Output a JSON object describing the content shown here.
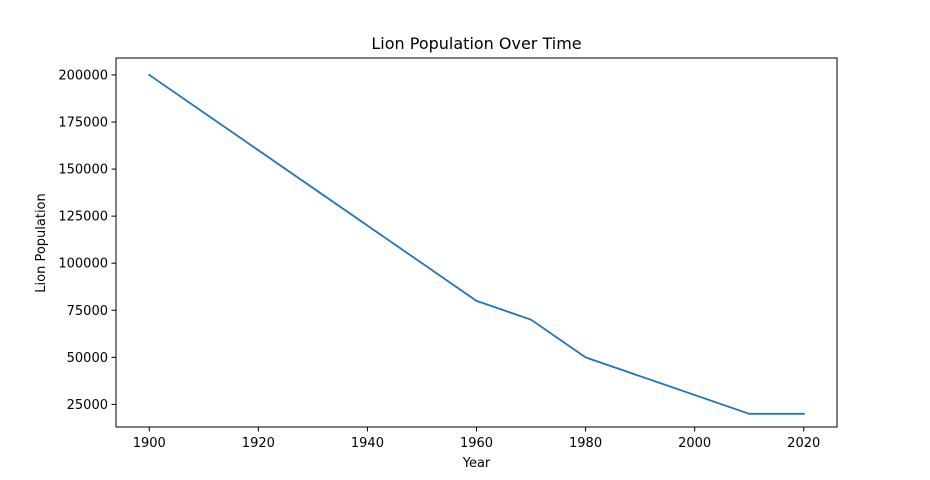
{
  "chart_data": {
    "type": "line",
    "title": "Lion Population Over Time",
    "xlabel": "Year",
    "ylabel": "Lion Population",
    "xlim": [
      1893.9,
      2026.1
    ],
    "ylim": [
      13000,
      209000
    ],
    "xticks": [
      1900,
      1920,
      1940,
      1960,
      1980,
      2000,
      2020
    ],
    "yticks": [
      25000,
      50000,
      75000,
      100000,
      125000,
      150000,
      175000,
      200000
    ],
    "grid": false,
    "line_color": "#1f77b4",
    "series": [
      {
        "x": [
          1900,
          1960,
          1970,
          1980,
          2010,
          2020
        ],
        "y": [
          200000,
          80000,
          70000,
          50000,
          20000,
          20000
        ]
      }
    ]
  }
}
